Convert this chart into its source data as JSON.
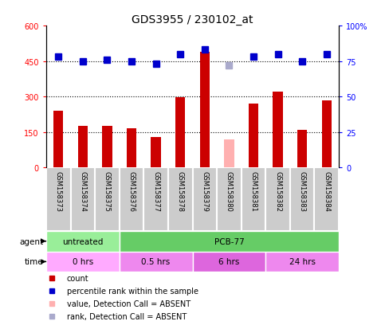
{
  "title": "GDS3955 / 230102_at",
  "samples": [
    "GSM158373",
    "GSM158374",
    "GSM158375",
    "GSM158376",
    "GSM158377",
    "GSM158378",
    "GSM158379",
    "GSM158380",
    "GSM158381",
    "GSM158382",
    "GSM158383",
    "GSM158384"
  ],
  "count_values": [
    240,
    175,
    175,
    165,
    130,
    298,
    490,
    null,
    272,
    320,
    160,
    285
  ],
  "absent_count_value": 120,
  "absent_count_index": 7,
  "rank_values": [
    78,
    75,
    76,
    75,
    73,
    80,
    83,
    null,
    78,
    80,
    75,
    80
  ],
  "absent_rank_value": 72,
  "absent_rank_index": 7,
  "count_color": "#cc0000",
  "absent_count_color": "#ffb0b0",
  "rank_color": "#0000cc",
  "absent_rank_color": "#aaaacc",
  "ylim_left": [
    0,
    600
  ],
  "ylim_right": [
    0,
    100
  ],
  "yticks_left": [
    0,
    150,
    300,
    450,
    600
  ],
  "yticks_right": [
    0,
    25,
    50,
    75,
    100
  ],
  "ytick_labels_left": [
    "0",
    "150",
    "300",
    "450",
    "600"
  ],
  "ytick_labels_right": [
    "0",
    "25",
    "50",
    "75",
    "100%"
  ],
  "hlines": [
    150,
    300,
    450
  ],
  "agent_groups": [
    {
      "label": "untreated",
      "start": 0,
      "end": 3,
      "color": "#99ee99"
    },
    {
      "label": "PCB-77",
      "start": 3,
      "end": 12,
      "color": "#66cc66"
    }
  ],
  "time_groups": [
    {
      "label": "0 hrs",
      "start": 0,
      "end": 3,
      "color": "#ffaaff"
    },
    {
      "label": "0.5 hrs",
      "start": 3,
      "end": 6,
      "color": "#ee88ee"
    },
    {
      "label": "6 hrs",
      "start": 6,
      "end": 9,
      "color": "#dd66dd"
    },
    {
      "label": "24 hrs",
      "start": 9,
      "end": 12,
      "color": "#ee88ee"
    }
  ],
  "legend_items": [
    {
      "label": "count",
      "color": "#cc0000"
    },
    {
      "label": "percentile rank within the sample",
      "color": "#0000cc"
    },
    {
      "label": "value, Detection Call = ABSENT",
      "color": "#ffb0b0"
    },
    {
      "label": "rank, Detection Call = ABSENT",
      "color": "#aaaacc"
    }
  ],
  "bar_width": 0.4,
  "marker_size": 6,
  "sample_box_color": "#cccccc",
  "title_fontsize": 10,
  "tick_fontsize": 7,
  "label_fontsize": 7.5,
  "legend_fontsize": 7
}
